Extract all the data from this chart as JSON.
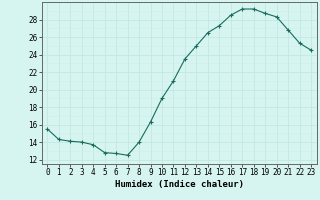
{
  "x": [
    0,
    1,
    2,
    3,
    4,
    5,
    6,
    7,
    8,
    9,
    10,
    11,
    12,
    13,
    14,
    15,
    16,
    17,
    18,
    19,
    20,
    21,
    22,
    23
  ],
  "y": [
    15.5,
    14.3,
    14.1,
    14.0,
    13.7,
    12.8,
    12.7,
    12.5,
    14.0,
    16.3,
    19.0,
    21.0,
    23.5,
    25.0,
    26.5,
    27.3,
    28.5,
    29.2,
    29.2,
    28.7,
    28.3,
    26.8,
    25.3,
    24.5
  ],
  "line_color": "#1a6b5e",
  "marker": "+",
  "marker_size": 3,
  "marker_lw": 0.8,
  "line_width": 0.8,
  "background_color": "#d6f5f0",
  "grid_major_color": "#c2e8e2",
  "grid_minor_color": "#d0eeea",
  "xlabel": "Humidex (Indice chaleur)",
  "xlim": [
    -0.5,
    23.5
  ],
  "ylim": [
    11.5,
    30.0
  ],
  "yticks": [
    12,
    14,
    16,
    18,
    20,
    22,
    24,
    26,
    28
  ],
  "xtick_labels": [
    "0",
    "1",
    "2",
    "3",
    "4",
    "5",
    "6",
    "7",
    "8",
    "9",
    "10",
    "11",
    "12",
    "13",
    "14",
    "15",
    "16",
    "17",
    "18",
    "19",
    "20",
    "21",
    "22",
    "23"
  ],
  "label_fontsize": 6.5,
  "tick_fontsize": 5.5,
  "fig_width": 3.2,
  "fig_height": 2.0,
  "dpi": 100
}
